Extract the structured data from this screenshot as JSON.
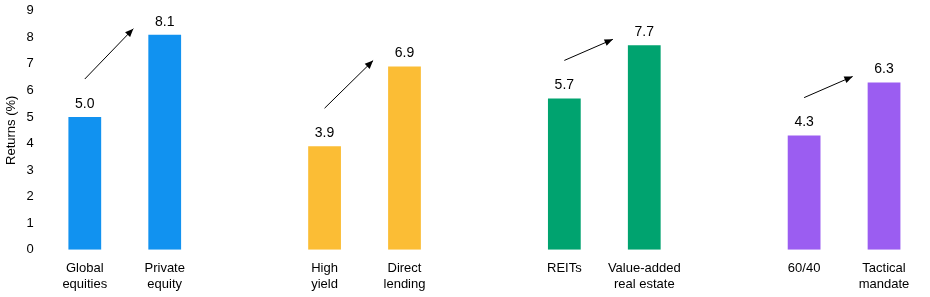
{
  "chart_data": {
    "type": "bar",
    "y_label": "Returns (%)",
    "categories": [
      "Global equities",
      "Private equity",
      null,
      "High yield",
      "Direct lending",
      null,
      "REITs",
      "Value-added real estate",
      null,
      "60/40",
      "Tactical mandate"
    ],
    "values": [
      5.0,
      8.1,
      null,
      3.9,
      6.9,
      null,
      5.7,
      7.7,
      null,
      4.3,
      6.3
    ],
    "value_labels": [
      "5.0",
      "8.1",
      null,
      "3.9",
      "6.9",
      null,
      "5.7",
      "7.7",
      null,
      "4.3",
      "6.3"
    ],
    "colors": [
      "#1192f0",
      "#1192f0",
      null,
      "#fbbd35",
      "#fbbd35",
      null,
      "#00a36f",
      "#00a36f",
      null,
      "#9b5df1",
      "#9b5df1"
    ],
    "ylim": [
      0,
      9
    ],
    "yticks": [
      0,
      1,
      2,
      3,
      4,
      5,
      6,
      7,
      8,
      9
    ],
    "grid": false,
    "data_labels": true
  }
}
